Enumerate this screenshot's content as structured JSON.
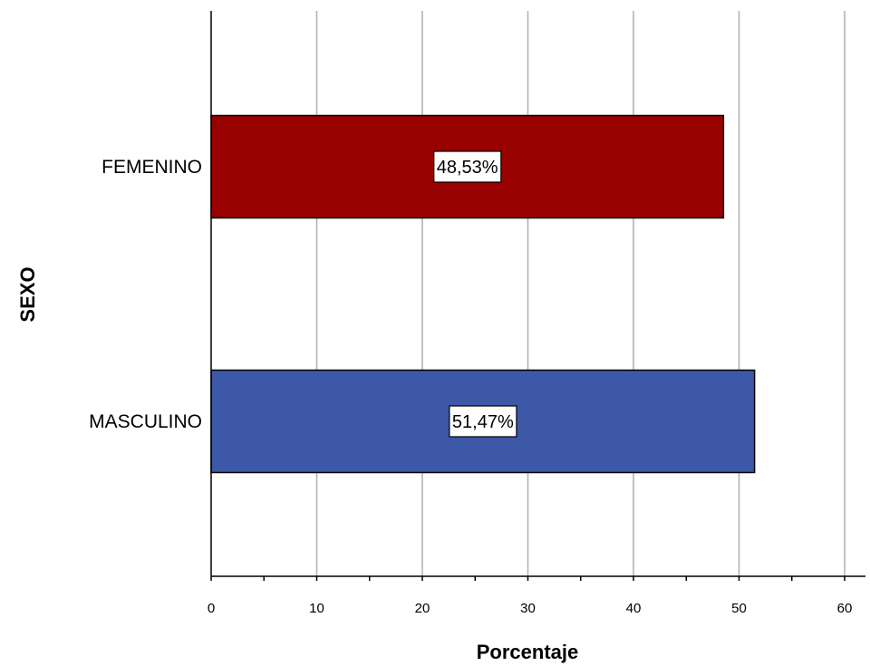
{
  "chart_data": {
    "type": "bar",
    "orientation": "horizontal",
    "title": "",
    "xlabel": "Porcentaje",
    "ylabel": "SEXO",
    "categories": [
      "FEMENINO",
      "MASCULINO"
    ],
    "values": [
      48.53,
      51.47
    ],
    "data_labels": [
      "48,53%",
      "51,47%"
    ],
    "colors": [
      "#990000",
      "#3D58A7"
    ],
    "xlim": [
      0,
      62
    ],
    "xticks": [
      0,
      10,
      20,
      30,
      40,
      50,
      60
    ],
    "grid": true,
    "legend": "none"
  }
}
